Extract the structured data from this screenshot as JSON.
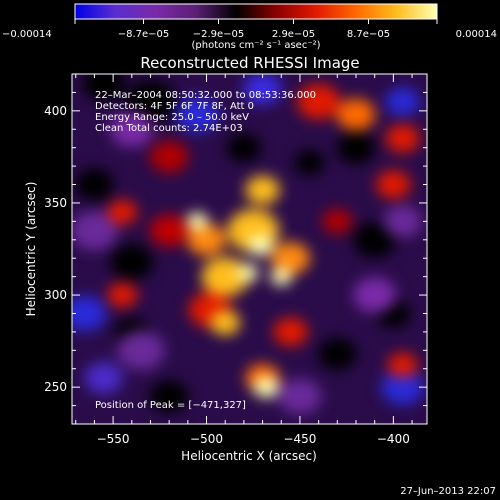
{
  "chart_data": {
    "type": "heatmap",
    "title": "Reconstructed RHESSI Image",
    "xlabel": "Heliocentric X (arcsec)",
    "ylabel": "Heliocentric Y (arcsec)",
    "xlim": [
      -572,
      -382
    ],
    "ylim": [
      230,
      420
    ],
    "x_ticks": [
      -550,
      -500,
      -450,
      -400
    ],
    "x_tick_labels": [
      "−550",
      "−500",
      "−450",
      "−400"
    ],
    "y_ticks": [
      250,
      300,
      350,
      400
    ],
    "y_tick_labels": [
      "250",
      "300",
      "350",
      "400"
    ],
    "colorbar": {
      "range": [
        -0.00014,
        0.00014
      ],
      "ticks": [
        -0.00014,
        -8.7e-05,
        -2.9e-05,
        2.9e-05,
        8.7e-05,
        0.00014
      ],
      "tick_labels": [
        "−0.00014",
        "−8.7e−05",
        "−2.9e−05",
        "2.9e−05",
        "8.7e−05",
        "0.00014"
      ],
      "unit_label": "(photons cm⁻² s⁻¹ asec⁻²)",
      "palette": [
        "#0000e8",
        "#5a2ed0",
        "#7a2aa8",
        "#5c1f75",
        "#000000",
        "#8a0000",
        "#e11a00",
        "#ff6a00",
        "#ffbe1e",
        "#ffffb4"
      ]
    },
    "annotations": [
      "22–Mar–2004 08:50:32.000 to 08:53:36.000",
      "Detectors: 4F 5F 6F 7F 8F, Att 0",
      "Energy Range: 25.0 – 50.0 keV",
      "Clean     Total counts: 2.74E+03"
    ],
    "peak_label": "Position of Peak = [−471,327]",
    "peak_position": [
      -471,
      327
    ],
    "grid": false,
    "legend": "colorbar top"
  },
  "footer": {
    "timestamp": "27–Jun–2013 22:07"
  }
}
